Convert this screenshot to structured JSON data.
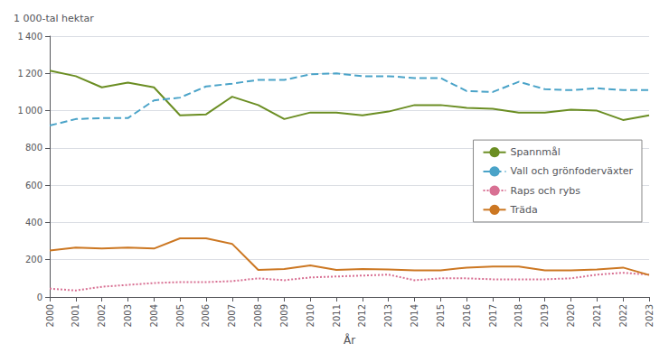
{
  "chart_data": {
    "type": "line",
    "ylabel": "1 000-tal hektar",
    "xlabel": "År",
    "x": [
      2000,
      2001,
      2002,
      2003,
      2004,
      2005,
      2006,
      2007,
      2008,
      2009,
      2010,
      2011,
      2012,
      2013,
      2014,
      2015,
      2016,
      2017,
      2018,
      2019,
      2020,
      2021,
      2022,
      2023
    ],
    "series": [
      {
        "name": "Spannmål",
        "color": "#6b8e23",
        "line_style": "solid",
        "values": [
          1215,
          1185,
          1125,
          1150,
          1125,
          975,
          980,
          1075,
          1030,
          955,
          990,
          990,
          975,
          995,
          1030,
          1030,
          1015,
          1010,
          990,
          990,
          1005,
          1000,
          950,
          975
        ]
      },
      {
        "name": "Vall och grönfoderväxter",
        "color": "#4aa3c8",
        "line_style": "dashed",
        "values": [
          920,
          955,
          960,
          960,
          1055,
          1070,
          1130,
          1145,
          1165,
          1165,
          1195,
          1200,
          1185,
          1185,
          1175,
          1175,
          1105,
          1100,
          1155,
          1115,
          1110,
          1120,
          1110,
          1110
        ]
      },
      {
        "name": "Raps och rybs",
        "color": "#d87093",
        "line_style": "dotted",
        "values": [
          45,
          35,
          55,
          65,
          75,
          80,
          80,
          85,
          100,
          90,
          105,
          110,
          115,
          120,
          90,
          100,
          100,
          95,
          95,
          95,
          100,
          120,
          130,
          120
        ]
      },
      {
        "name": "Träda",
        "color": "#cc7722",
        "line_style": "solid",
        "values": [
          250,
          265,
          260,
          265,
          260,
          315,
          315,
          285,
          145,
          150,
          170,
          145,
          150,
          148,
          143,
          143,
          158,
          163,
          163,
          143,
          143,
          148,
          158,
          118
        ]
      }
    ],
    "xlim": [
      2000,
      2023
    ],
    "xticks": [
      2000,
      2001,
      2002,
      2003,
      2004,
      2005,
      2006,
      2007,
      2008,
      2009,
      2010,
      2011,
      2012,
      2013,
      2014,
      2015,
      2016,
      2017,
      2018,
      2019,
      2020,
      2021,
      2022,
      2023
    ],
    "ylim": [
      0,
      1400
    ],
    "yticks": [
      0,
      200,
      400,
      600,
      800,
      {
        "value": 1000,
        "label": "1 000"
      },
      {
        "value": 1200,
        "label": "1 200"
      },
      {
        "value": 1400,
        "label": "1 400"
      }
    ],
    "grid": true,
    "legend": "right"
  }
}
